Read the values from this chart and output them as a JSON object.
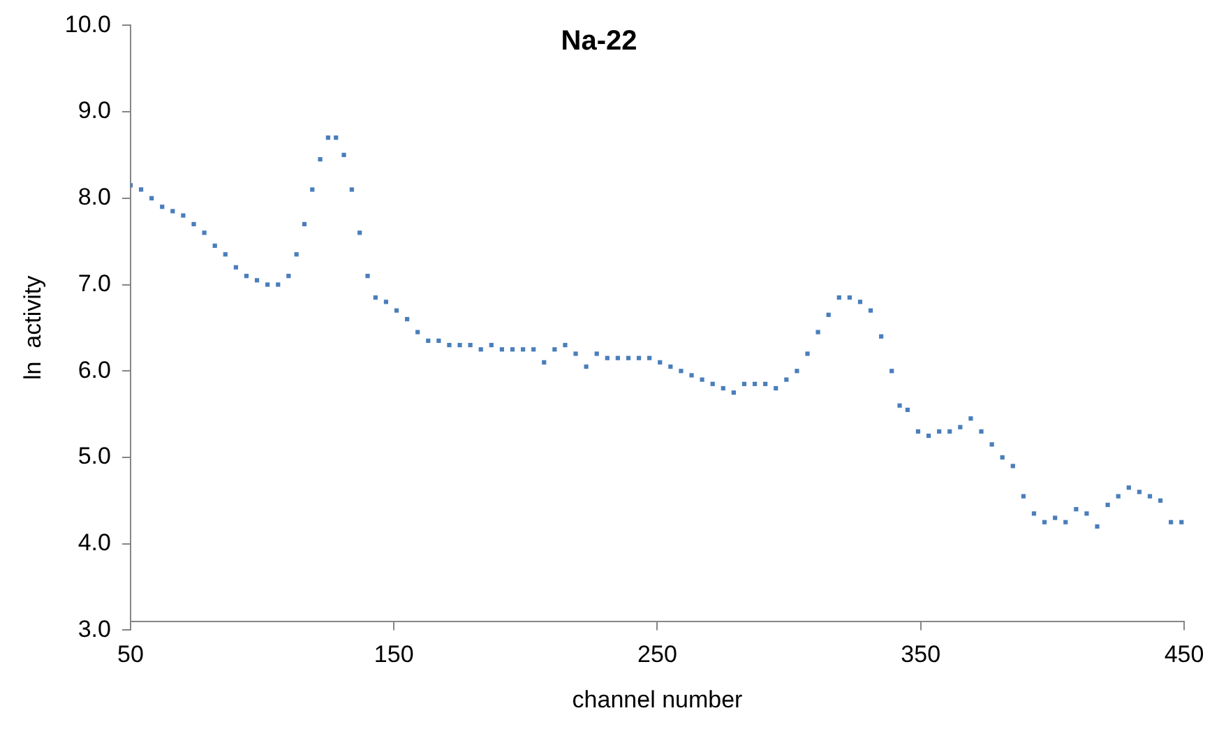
{
  "chart_data": {
    "type": "scatter",
    "title": "Na-22",
    "xlabel": "channel number",
    "ylabel": "ln  activity",
    "marker": "square",
    "grid": false,
    "legend": false,
    "xlim": [
      50,
      450
    ],
    "xticks": [
      50,
      150,
      250,
      350,
      450
    ],
    "ylim": [
      3,
      10
    ],
    "yticks": [
      {
        "value": 3,
        "label": "3.0"
      },
      {
        "value": 4,
        "label": "4.0"
      },
      {
        "value": 5,
        "label": "5.0"
      },
      {
        "value": 6,
        "label": "6.0"
      },
      {
        "value": 7,
        "label": "7.0"
      },
      {
        "value": 8,
        "label": "8.0"
      },
      {
        "value": 9,
        "label": "9.0"
      },
      {
        "value": 10,
        "label": "10.0"
      }
    ],
    "series": [
      {
        "color": "#4a7ebb",
        "x": [
          50,
          54,
          58,
          62,
          66,
          70,
          74,
          78,
          82,
          86,
          90,
          94,
          98,
          102,
          106,
          110,
          113,
          116,
          119,
          122,
          125,
          128,
          131,
          134,
          137,
          140,
          143,
          147,
          151,
          155,
          159,
          163,
          167,
          171,
          175,
          179,
          183,
          187,
          191,
          195,
          199,
          203,
          207,
          211,
          215,
          219,
          223,
          227,
          231,
          235,
          239,
          243,
          247,
          251,
          255,
          259,
          263,
          267,
          271,
          275,
          279,
          283,
          287,
          291,
          295,
          299,
          303,
          307,
          311,
          315,
          319,
          323,
          327,
          331,
          335,
          339,
          342,
          345,
          349,
          353,
          357,
          361,
          365,
          369,
          373,
          377,
          381,
          385,
          389,
          393,
          397,
          401,
          405,
          409,
          413,
          417,
          421,
          425,
          429,
          433,
          437,
          441,
          445,
          449
        ],
        "values": [
          8.15,
          8.1,
          8.0,
          7.9,
          7.85,
          7.8,
          7.7,
          7.6,
          7.45,
          7.35,
          7.2,
          7.1,
          7.05,
          7.0,
          7.0,
          7.1,
          7.35,
          7.7,
          8.1,
          8.45,
          8.7,
          8.7,
          8.5,
          8.1,
          7.6,
          7.1,
          6.85,
          6.8,
          6.7,
          6.6,
          6.45,
          6.35,
          6.35,
          6.3,
          6.3,
          6.3,
          6.25,
          6.3,
          6.25,
          6.25,
          6.25,
          6.25,
          6.1,
          6.25,
          6.3,
          6.2,
          6.05,
          6.2,
          6.15,
          6.15,
          6.15,
          6.15,
          6.15,
          6.1,
          6.05,
          6.0,
          5.95,
          5.9,
          5.85,
          5.8,
          5.75,
          5.85,
          5.85,
          5.85,
          5.8,
          5.9,
          6.0,
          6.2,
          6.45,
          6.65,
          6.85,
          6.85,
          6.8,
          6.7,
          6.4,
          6.0,
          5.6,
          5.55,
          5.3,
          5.25,
          5.3,
          5.3,
          5.35,
          5.45,
          5.3,
          5.15,
          5.0,
          4.9,
          4.55,
          4.35,
          4.25,
          4.3,
          4.25,
          4.4,
          4.35,
          4.2,
          4.45,
          4.55,
          4.65,
          4.6,
          4.55,
          4.5,
          4.25,
          4.25
        ]
      }
    ]
  }
}
